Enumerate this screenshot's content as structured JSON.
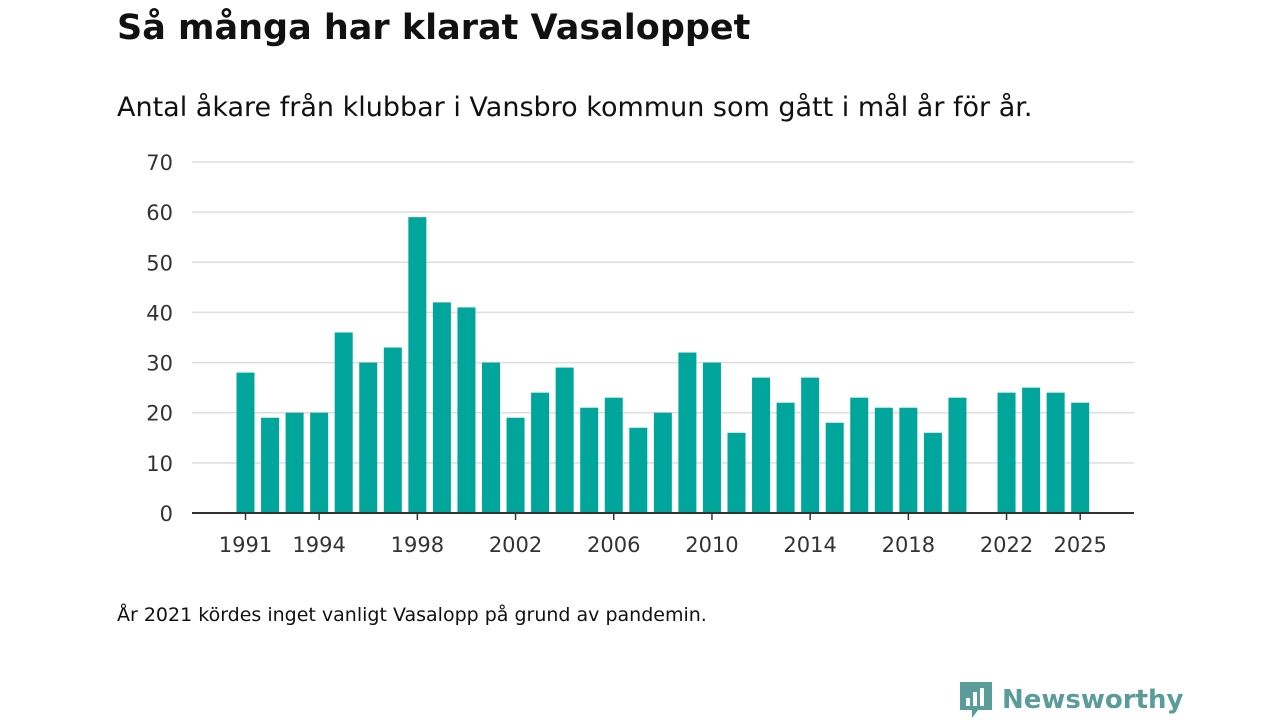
{
  "title": "Så många har klarat Vasaloppet",
  "subtitle": "Antal åkare från klubbar i Vansbro kommun som gått i mål år för år.",
  "footnote": "År 2021 kördes inget vanligt Vasalopp på grund av pandemin.",
  "brand": {
    "name": "Newsworthy",
    "icon": "newsworthy-logo-icon",
    "color": "#5a9c9a"
  },
  "colors": {
    "bar": "#00a69c",
    "grid": "#dddddd",
    "axis": "#333333",
    "text": "#333333"
  },
  "chart_data": {
    "type": "bar",
    "title": "Så många har klarat Vasaloppet",
    "xlabel": "",
    "ylabel": "",
    "ylim": [
      0,
      70
    ],
    "yticks": [
      0,
      10,
      20,
      30,
      40,
      50,
      60,
      70
    ],
    "xticks": [
      1991,
      1994,
      1998,
      2002,
      2006,
      2010,
      2014,
      2018,
      2022,
      2025
    ],
    "grid": true,
    "x": [
      1991,
      1992,
      1993,
      1994,
      1995,
      1996,
      1997,
      1998,
      1999,
      2000,
      2001,
      2002,
      2003,
      2004,
      2005,
      2006,
      2007,
      2008,
      2009,
      2010,
      2011,
      2012,
      2013,
      2014,
      2015,
      2016,
      2017,
      2018,
      2019,
      2020,
      2021,
      2022,
      2023,
      2024,
      2025
    ],
    "values": [
      28,
      19,
      20,
      20,
      36,
      30,
      33,
      59,
      42,
      41,
      30,
      19,
      24,
      29,
      21,
      23,
      17,
      20,
      32,
      30,
      16,
      27,
      22,
      27,
      18,
      23,
      21,
      21,
      16,
      23,
      null,
      24,
      25,
      24,
      22
    ]
  }
}
